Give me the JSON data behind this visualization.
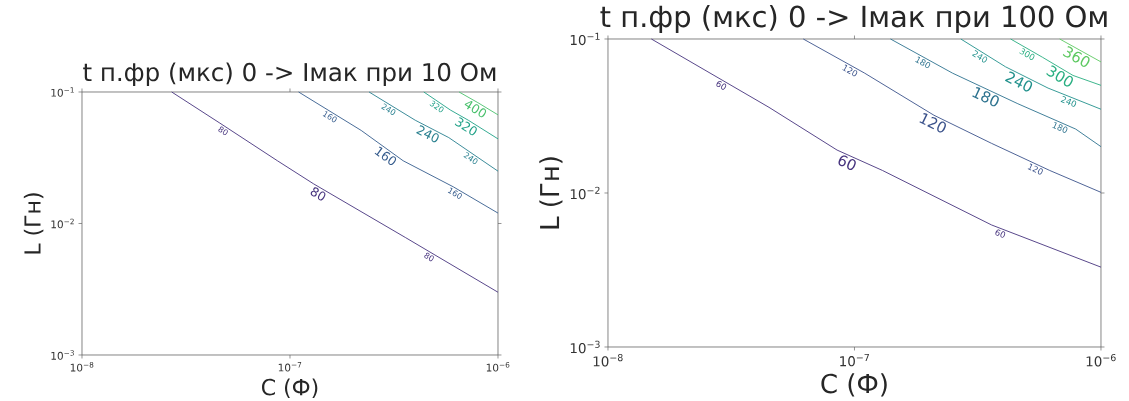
{
  "chart_data": [
    {
      "type": "line",
      "title": "t п.фр (мкс) 0 -> Імак при 10 Ом",
      "xlabel": "C (Ф)",
      "ylabel": "L (Гн)",
      "log": "xy",
      "xlim": [
        1e-08,
        1e-06
      ],
      "ylim": [
        0.001,
        0.1
      ],
      "xticks": [
        {
          "value": 1e-08,
          "label": "10$^{−8}$"
        },
        {
          "value": 1e-07,
          "label": "10$^{−7}$"
        },
        {
          "value": 1e-06,
          "label": "10$^{−6}$"
        }
      ],
      "yticks": [
        {
          "value": 0.001,
          "label": "10$^{−3}$"
        },
        {
          "value": 0.01,
          "label": "10$^{−2}$"
        },
        {
          "value": 0.1,
          "label": "10$^{−1}$"
        }
      ],
      "series": [
        {
          "name": "80",
          "color": "#46337e",
          "x": [
            2.7e-08,
            4.6e-08,
            8.7e-08,
            1.3e-07,
            3.6e-07,
            1e-06
          ],
          "values": [
            0.1,
            0.058,
            0.03,
            0.02,
            0.0078,
            0.003
          ]
        },
        {
          "name": "160",
          "color": "#365c8d",
          "x": [
            1.1e-07,
            2.2e-07,
            3.5e-07,
            6.1e-07,
            1e-06
          ],
          "values": [
            0.1,
            0.051,
            0.03,
            0.019,
            0.012
          ]
        },
        {
          "name": "240",
          "color": "#277f8e",
          "x": [
            2.4e-07,
            4e-07,
            5.8e-07,
            1e-06
          ],
          "values": [
            0.1,
            0.061,
            0.045,
            0.025
          ]
        },
        {
          "name": "320",
          "color": "#1fa187",
          "x": [
            4.4e-07,
            5.9e-07,
            7.2e-07,
            1e-06
          ],
          "values": [
            0.1,
            0.073,
            0.061,
            0.044
          ]
        },
        {
          "name": "400",
          "color": "#4ac16d",
          "x": [
            6.5e-07,
            8e-07,
            1e-06
          ],
          "values": [
            0.1,
            0.083,
            0.067
          ]
        }
      ]
    },
    {
      "type": "line",
      "title": "t п.фр (мкс) 0 -> Імак при 100 Ом",
      "xlabel": "C (Ф)",
      "ylabel": "L (Гн)",
      "log": "xy",
      "xlim": [
        1e-08,
        1e-06
      ],
      "ylim": [
        0.001,
        0.1
      ],
      "xticks": [
        {
          "value": 1e-08,
          "label": "10$^{−8}$"
        },
        {
          "value": 1e-07,
          "label": "10$^{−7}$"
        },
        {
          "value": 1e-06,
          "label": "10$^{−6}$"
        }
      ],
      "yticks": [
        {
          "value": 0.001,
          "label": "10$^{−3}$"
        },
        {
          "value": 0.01,
          "label": "10$^{−2}$"
        },
        {
          "value": 0.1,
          "label": "10$^{−1}$"
        }
      ],
      "series": [
        {
          "name": "60",
          "color": "#46337e",
          "x": [
            1.5e-08,
            4.5e-08,
            8.5e-08,
            1.3e-07,
            3.6e-07,
            1e-06
          ],
          "values": [
            0.1,
            0.036,
            0.019,
            0.014,
            0.0062,
            0.0033
          ]
        },
        {
          "name": "120",
          "color": "#3b528b",
          "x": [
            6.2e-08,
            1.1e-07,
            2.1e-07,
            3.6e-07,
            6.2e-07,
            1e-06
          ],
          "values": [
            0.1,
            0.06,
            0.032,
            0.021,
            0.014,
            0.0101
          ]
        },
        {
          "name": "180",
          "color": "#2c728e",
          "x": [
            1.4e-07,
            2.5e-07,
            4.6e-07,
            7.9e-07,
            1e-06
          ],
          "values": [
            0.1,
            0.06,
            0.038,
            0.026,
            0.02
          ]
        },
        {
          "name": "240",
          "color": "#21918c",
          "x": [
            2.7e-07,
            4.1e-07,
            6.1e-07,
            1e-06
          ],
          "values": [
            0.1,
            0.066,
            0.048,
            0.035
          ]
        },
        {
          "name": "300",
          "color": "#28ae80",
          "x": [
            4.3e-07,
            5.8e-07,
            7.7e-07,
            1e-06
          ],
          "values": [
            0.1,
            0.076,
            0.058,
            0.05
          ]
        },
        {
          "name": "360",
          "color": "#5ec962",
          "x": [
            6.8e-07,
            1e-06
          ],
          "values": [
            0.1,
            0.071
          ]
        }
      ]
    }
  ]
}
